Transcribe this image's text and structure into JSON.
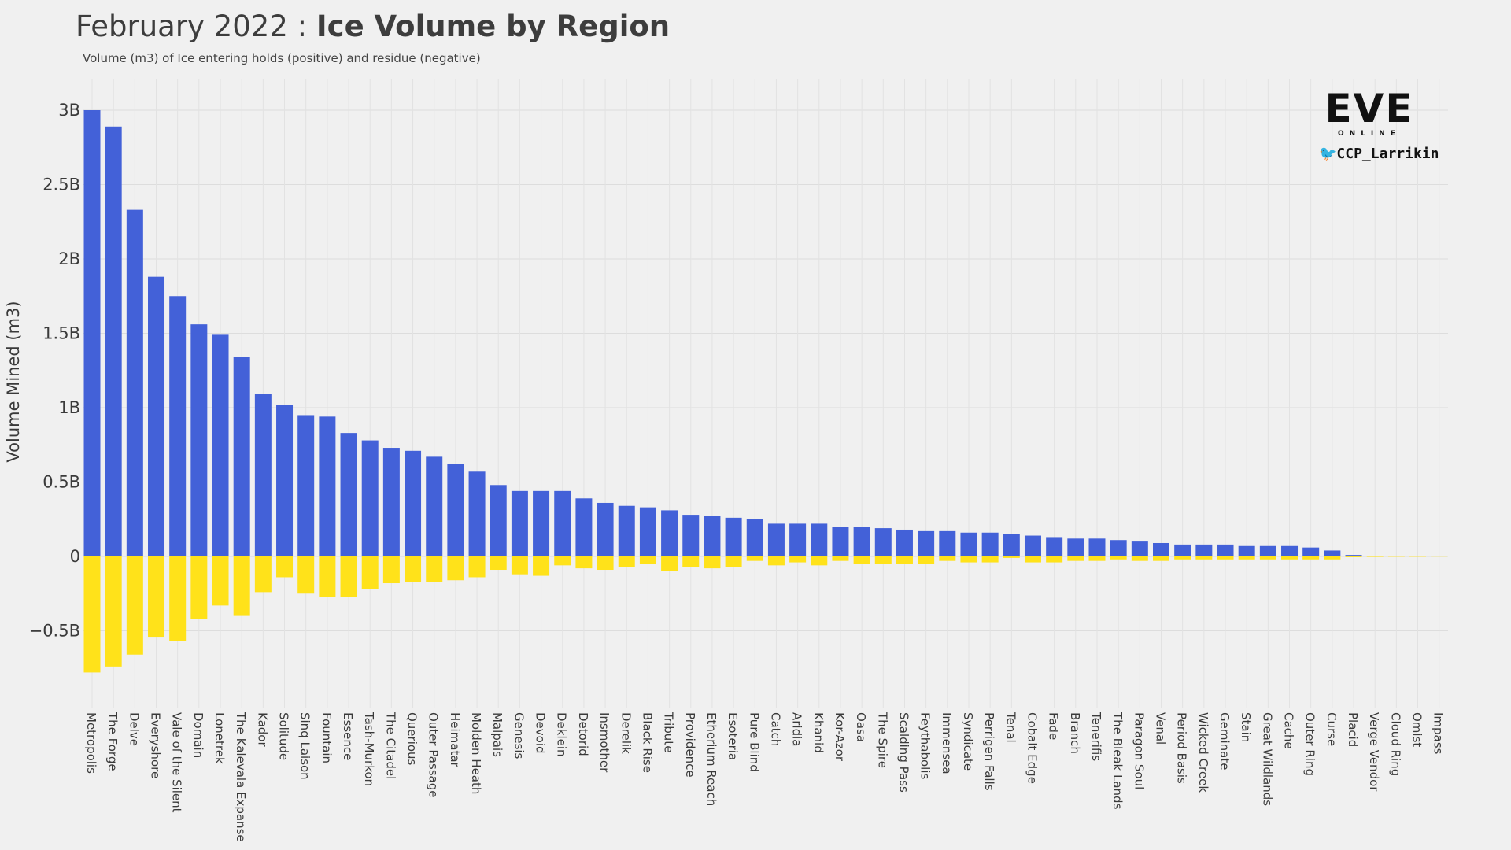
{
  "title_light": "February 2022 : ",
  "title_bold": "Ice Volume by Region",
  "subtitle": "Volume (m3) of Ice entering holds (positive) and residue (negative)",
  "logo": {
    "brand": "EVE",
    "sub": "ONLINE",
    "twitter_handle": "CCP_Larrikin",
    "twitter_icon": "twitter-bird-icon"
  },
  "chart_data": {
    "type": "bar",
    "stacked": "diverging",
    "ylabel": "Volume Mined (m3)",
    "ylim": [
      -0.85,
      3.05
    ],
    "yticks": [
      {
        "value": 3,
        "label": "3B"
      },
      {
        "value": 2.5,
        "label": "2.5B"
      },
      {
        "value": 2,
        "label": "2B"
      },
      {
        "value": 1.5,
        "label": "1.5B"
      },
      {
        "value": 1,
        "label": "1B"
      },
      {
        "value": 0.5,
        "label": "0.5B"
      },
      {
        "value": 0,
        "label": "0"
      },
      {
        "value": -0.5,
        "label": "−0.5B"
      }
    ],
    "grid": true,
    "colors": {
      "positive": "#4361d8",
      "negative": "#ffe21a"
    },
    "categories": [
      "Metropolis",
      "The Forge",
      "Delve",
      "Everyshore",
      "Vale of the Silent",
      "Domain",
      "Lonetrek",
      "The Kalevala Expanse",
      "Kador",
      "Solitude",
      "Sinq Laison",
      "Fountain",
      "Essence",
      "Tash-Murkon",
      "The Citadel",
      "Querious",
      "Outer Passage",
      "Heimatar",
      "Molden Heath",
      "Malpais",
      "Genesis",
      "Devoid",
      "Deklein",
      "Detorid",
      "Insmother",
      "Derelik",
      "Black Rise",
      "Tribute",
      "Providence",
      "Etherium Reach",
      "Esoteria",
      "Pure Blind",
      "Catch",
      "Aridia",
      "Khanid",
      "Kor-Azor",
      "Oasa",
      "The Spire",
      "Scalding Pass",
      "Feythabolis",
      "Immensea",
      "Syndicate",
      "Perrigen Falls",
      "Tenal",
      "Cobalt Edge",
      "Fade",
      "Branch",
      "Tenerifis",
      "The Bleak Lands",
      "Paragon Soul",
      "Venal",
      "Period Basis",
      "Wicked Creek",
      "Geminate",
      "Stain",
      "Great Wildlands",
      "Cache",
      "Outer Ring",
      "Curse",
      "Placid",
      "Verge Vendor",
      "Cloud Ring",
      "Omist",
      "Impass"
    ],
    "series": [
      {
        "values": [
          3.0,
          2.89,
          2.33,
          1.88,
          1.75,
          1.56,
          1.49,
          1.34,
          1.09,
          1.02,
          0.95,
          0.94,
          0.83,
          0.78,
          0.73,
          0.71,
          0.67,
          0.62,
          0.57,
          0.48,
          0.44,
          0.44,
          0.44,
          0.39,
          0.36,
          0.34,
          0.33,
          0.31,
          0.28,
          0.27,
          0.26,
          0.25,
          0.22,
          0.22,
          0.22,
          0.2,
          0.2,
          0.19,
          0.18,
          0.17,
          0.17,
          0.16,
          0.16,
          0.15,
          0.14,
          0.13,
          0.12,
          0.12,
          0.11,
          0.1,
          0.09,
          0.08,
          0.08,
          0.08,
          0.07,
          0.07,
          0.07,
          0.06,
          0.04,
          0.01,
          0.005,
          0.005,
          0.005,
          0.0
        ]
      },
      {
        "values": [
          -0.78,
          -0.74,
          -0.66,
          -0.54,
          -0.57,
          -0.42,
          -0.33,
          -0.4,
          -0.24,
          -0.14,
          -0.25,
          -0.27,
          -0.27,
          -0.22,
          -0.18,
          -0.17,
          -0.17,
          -0.16,
          -0.14,
          -0.09,
          -0.12,
          -0.13,
          -0.06,
          -0.08,
          -0.09,
          -0.07,
          -0.05,
          -0.1,
          -0.07,
          -0.08,
          -0.07,
          -0.03,
          -0.06,
          -0.04,
          -0.06,
          -0.03,
          -0.05,
          -0.05,
          -0.05,
          -0.05,
          -0.03,
          -0.04,
          -0.04,
          -0.01,
          -0.04,
          -0.04,
          -0.03,
          -0.03,
          -0.02,
          -0.03,
          -0.03,
          -0.02,
          -0.02,
          -0.02,
          -0.02,
          -0.02,
          -0.02,
          -0.02,
          -0.02,
          -0.005,
          -0.003,
          -0.002,
          -0.002,
          -0.001
        ]
      }
    ]
  }
}
